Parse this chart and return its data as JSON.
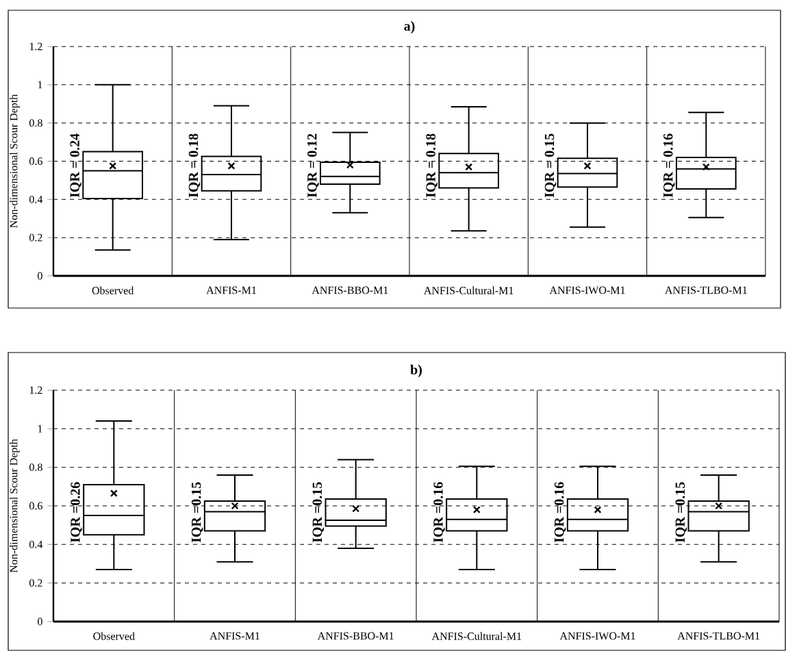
{
  "chart_data": [
    {
      "type": "box",
      "title": "a)",
      "ylabel": "Non-dimensional Scour Depth",
      "color": "#000000",
      "marker": "cross",
      "categories": [
        "Observed",
        "ANFIS-M1",
        "ANFIS-BBO-M1",
        "ANFIS-Cultural-M1",
        "ANFIS-IWO-M1",
        "ANFIS-TLBO-M1"
      ],
      "boxes": [
        {
          "low": 0.135,
          "q1": 0.405,
          "median": 0.55,
          "q3": 0.65,
          "high": 1.0,
          "mean": 0.575
        },
        {
          "low": 0.19,
          "q1": 0.445,
          "median": 0.53,
          "q3": 0.625,
          "high": 0.89,
          "mean": 0.575
        },
        {
          "low": 0.33,
          "q1": 0.48,
          "median": 0.52,
          "q3": 0.595,
          "high": 0.75,
          "mean": 0.58
        },
        {
          "low": 0.235,
          "q1": 0.46,
          "median": 0.54,
          "q3": 0.64,
          "high": 0.885,
          "mean": 0.57
        },
        {
          "low": 0.255,
          "q1": 0.465,
          "median": 0.535,
          "q3": 0.615,
          "high": 0.8,
          "mean": 0.575
        },
        {
          "low": 0.305,
          "q1": 0.455,
          "median": 0.56,
          "q3": 0.62,
          "high": 0.855,
          "mean": 0.57
        }
      ],
      "annotations": [
        "IQR = 0.24",
        "IQR = 0.18",
        "IQR = 0.12",
        "IQR = 0.18",
        "IQR = 0.15",
        "IQR = 0.16"
      ],
      "ylim": [
        0,
        1.2
      ],
      "yticks": [
        0,
        0.2,
        0.4,
        0.6,
        0.8,
        1,
        1.2
      ],
      "grid": "y"
    },
    {
      "type": "box",
      "title": "b)",
      "ylabel": "Non-dimensional Scour Depth",
      "color": "#000000",
      "marker": "cross",
      "categories": [
        "Observed",
        "ANFIS-M1",
        "ANFIS-BBO-M1",
        "ANFIS-Cultural-M1",
        "ANFIS-IWO-M1",
        "ANFIS-TLBO-M1"
      ],
      "boxes": [
        {
          "low": 0.27,
          "q1": 0.45,
          "median": 0.55,
          "q3": 0.71,
          "high": 1.04,
          "mean": 0.665
        },
        {
          "low": 0.31,
          "q1": 0.47,
          "median": 0.57,
          "q3": 0.625,
          "high": 0.76,
          "mean": 0.6
        },
        {
          "low": 0.38,
          "q1": 0.495,
          "median": 0.525,
          "q3": 0.635,
          "high": 0.84,
          "mean": 0.585
        },
        {
          "low": 0.27,
          "q1": 0.47,
          "median": 0.53,
          "q3": 0.635,
          "high": 0.805,
          "mean": 0.58
        },
        {
          "low": 0.27,
          "q1": 0.47,
          "median": 0.53,
          "q3": 0.635,
          "high": 0.805,
          "mean": 0.58
        },
        {
          "low": 0.31,
          "q1": 0.47,
          "median": 0.57,
          "q3": 0.625,
          "high": 0.76,
          "mean": 0.6
        }
      ],
      "annotations": [
        "IQR =0.26",
        "IQR =0.15",
        "IQR =0.15",
        "IQR =0.16",
        "IQR =0.16",
        "IQR =0.15"
      ],
      "ylim": [
        0,
        1.2
      ],
      "yticks": [
        0,
        0.2,
        0.4,
        0.6,
        0.8,
        1,
        1.2
      ],
      "grid": "y"
    }
  ]
}
